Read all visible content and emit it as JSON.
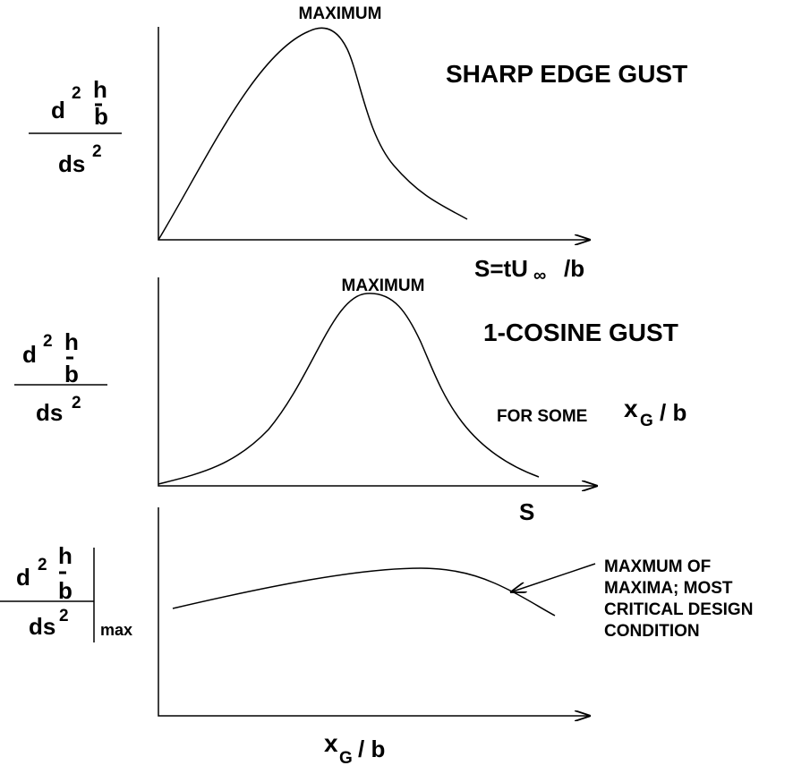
{
  "panels": [
    {
      "peak_label": "MAXIMUM",
      "title": "SHARP EDGE GUST",
      "y_label": {
        "d": "d",
        "d_exp": "2",
        "h": "h",
        "b": "b",
        "ds": "ds",
        "ds_exp": "2"
      },
      "x_label": {
        "main": "S=tU",
        "sub": "∞",
        "tail": "/b"
      }
    },
    {
      "peak_label": "MAXIMUM",
      "title": "1-COSINE GUST",
      "note": {
        "text": "FOR SOME",
        "x": "x",
        "sub": "G",
        "tail": "/ b"
      },
      "y_label": {
        "d": "d",
        "d_exp": "2",
        "h": "h",
        "b": "b",
        "ds": "ds",
        "ds_exp": "2"
      },
      "x_label": "S"
    },
    {
      "annotation": [
        "MAXMUM OF",
        "MAXIMA; MOST",
        "CRITICAL DESIGN",
        "CONDITION"
      ],
      "y_label": {
        "d": "d",
        "d_exp": "2",
        "h": "h",
        "b": "b",
        "ds": "ds",
        "ds_exp": "2",
        "max": "max"
      },
      "x_label": {
        "main": "x",
        "sub": "G",
        "tail": "/ b"
      }
    }
  ]
}
